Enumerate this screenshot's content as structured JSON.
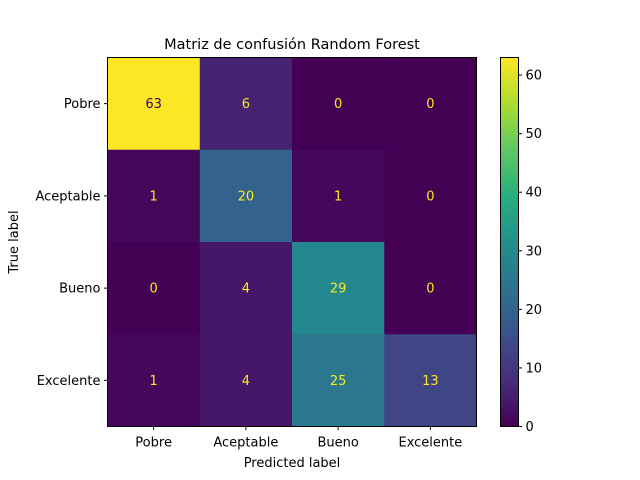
{
  "chart_data": {
    "type": "heatmap",
    "title": "Matriz de confusión Random Forest",
    "xlabel": "Predicted label",
    "ylabel": "True label",
    "row_labels": [
      "Pobre",
      "Aceptable",
      "Bueno",
      "Excelente"
    ],
    "col_labels": [
      "Pobre",
      "Aceptable",
      "Bueno",
      "Excelente"
    ],
    "matrix": [
      [
        63,
        6,
        0,
        0
      ],
      [
        1,
        20,
        1,
        0
      ],
      [
        0,
        4,
        29,
        0
      ],
      [
        1,
        4,
        25,
        13
      ]
    ],
    "colormap": "viridis",
    "vmin": 0,
    "vmax": 63,
    "colorbar_ticks": [
      0,
      10,
      20,
      30,
      40,
      50,
      60
    ],
    "text_colors": {
      "on_dark": "#fde725",
      "on_light": "#440154"
    },
    "grid": false
  }
}
